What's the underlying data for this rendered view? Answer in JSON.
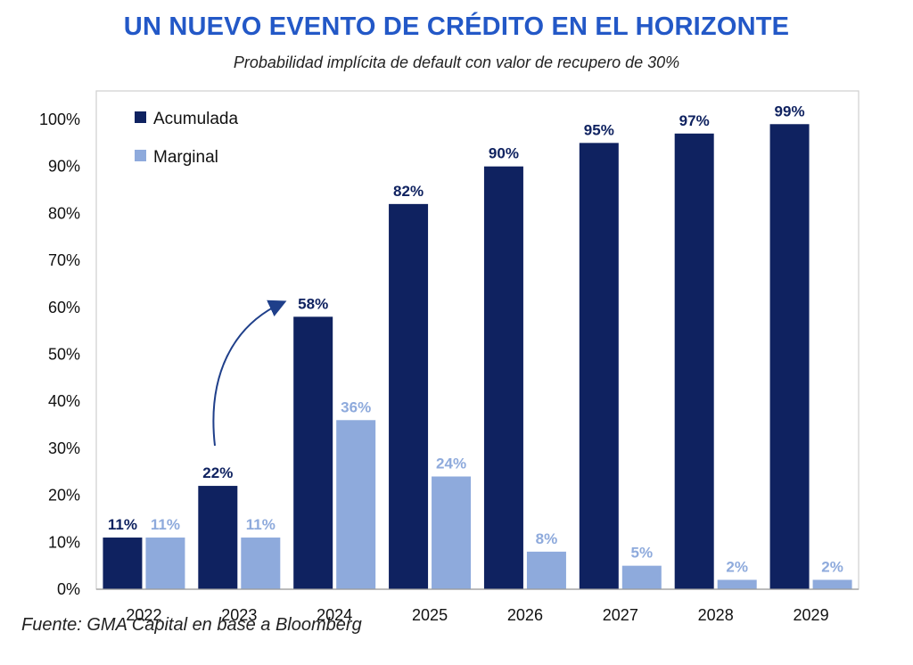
{
  "title": "UN NUEVO EVENTO DE CRÉDITO EN EL HORIZONTE",
  "subtitle": "Probabilidad implícita de default con valor de recupero de 30%",
  "source": "Fuente: GMA Capital en base a Bloomberg",
  "colors": {
    "acumulada": "#0f2260",
    "marginal": "#8eaadc",
    "acumulada_label": "#0f2260",
    "marginal_label": "#8eaadc",
    "arrow": "#1f3f8a"
  },
  "chart_data": {
    "type": "bar",
    "categories": [
      "2022",
      "2023",
      "2024",
      "2025",
      "2026",
      "2027",
      "2028",
      "2029"
    ],
    "series": [
      {
        "name": "Acumulada",
        "values": [
          11,
          22,
          58,
          82,
          90,
          95,
          97,
          99
        ],
        "labels": [
          "11%",
          "22%",
          "58%",
          "82%",
          "90%",
          "95%",
          "97%",
          "99%"
        ]
      },
      {
        "name": "Marginal",
        "values": [
          11,
          11,
          36,
          24,
          8,
          5,
          2,
          2
        ],
        "labels": [
          "11%",
          "11%",
          "36%",
          "24%",
          "8%",
          "5%",
          "2%",
          "2%"
        ]
      }
    ],
    "ylim": [
      0,
      100
    ],
    "yticks": [
      "0%",
      "10%",
      "20%",
      "30%",
      "40%",
      "50%",
      "60%",
      "70%",
      "80%",
      "90%",
      "100%"
    ],
    "legend_position": "top-left",
    "grid": false,
    "annotation": "curved arrow from 2023 to 2024 (Acumulada)"
  }
}
